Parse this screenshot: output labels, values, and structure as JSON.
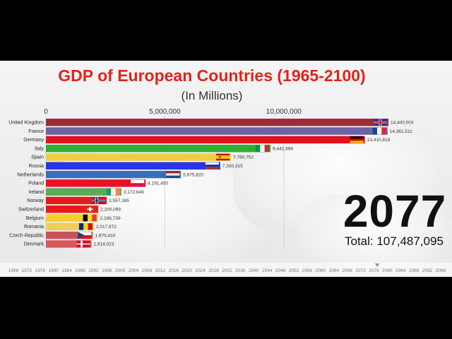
{
  "chart_data": {
    "type": "bar",
    "title": "GDP of European Countries (1965-2100)",
    "subtitle": "(In Millions)",
    "xlim": [
      0,
      14400003
    ],
    "x_ticks": [
      0,
      5000000,
      10000000
    ],
    "x_tick_labels": [
      "0",
      "5,000,000",
      "10,000,000"
    ],
    "categories": [
      "United Kingdom",
      "France",
      "Germany",
      "Italy",
      "Spain",
      "Russia",
      "Netherlands",
      "Poland",
      "Ireland",
      "Norway",
      "Switzerland",
      "Belgium",
      "Romania",
      "Czech Republic",
      "Denmark"
    ],
    "values": [
      14400003,
      14361511,
      13410818,
      9442894,
      7780752,
      7330315,
      5675820,
      4191450,
      3172649,
      2557165,
      2200099,
      2186739,
      2017972,
      1970433,
      1914023
    ],
    "value_labels": [
      "14,400,003",
      "14,361,511",
      "13,410,818",
      "9,442,894",
      "7,780,752",
      "7,330,315",
      "5,675,820",
      "4,191,450",
      "3,172,649",
      "2,557,165",
      "2,200,099",
      "2,186,739",
      "2,017,972",
      "1,970,433",
      "1,914,023"
    ],
    "bar_colors": [
      "#9b2c3a",
      "#6a64a4",
      "#e3101c",
      "#2fae32",
      "#f3cd43",
      "#2a35e8",
      "#3a6ebd",
      "#e51424",
      "#59aa59",
      "#e31b1b",
      "#e51b1b",
      "#f2cf2f",
      "#f1cc56",
      "#c8525a",
      "#d9585c"
    ],
    "flags": [
      "uk-flag",
      "france-flag",
      "germany-flag",
      "italy-flag",
      "spain-flag",
      "russia-flag",
      "netherlands-flag",
      "poland-flag",
      "ireland-flag",
      "norway-flag",
      "switzerland-flag",
      "belgium-flag",
      "romania-flag",
      "czech-flag",
      "denmark-flag"
    ],
    "grid": true
  },
  "year": "2077",
  "total_text": "Total: 107,487,095",
  "timeline": {
    "years": [
      "1968",
      "1972",
      "1976",
      "1980",
      "1984",
      "1988",
      "1992",
      "1996",
      "2000",
      "2004",
      "2008",
      "2012",
      "2016",
      "2020",
      "2024",
      "2028",
      "2032",
      "2036",
      "2040",
      "2044",
      "2048",
      "2052",
      "2056",
      "2060",
      "2064",
      "2068",
      "2072",
      "2076",
      "2080",
      "2084",
      "2088",
      "2092",
      "2096"
    ],
    "current_year": 2077
  }
}
